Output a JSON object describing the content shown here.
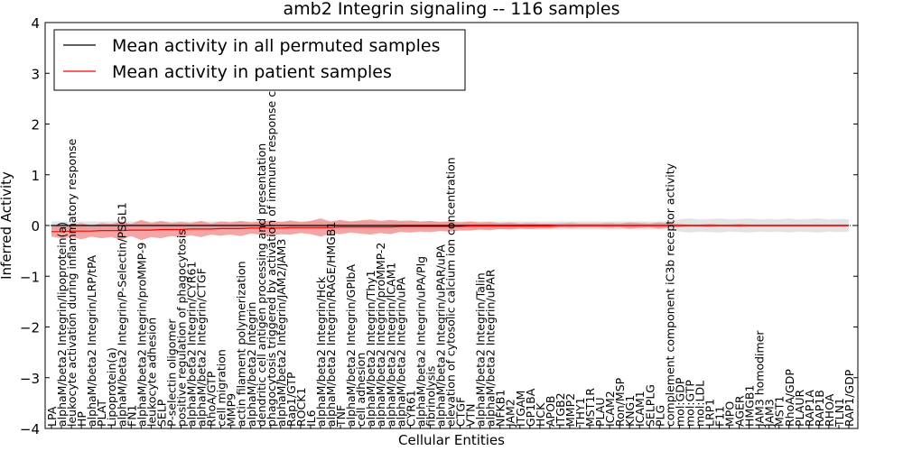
{
  "chart_data": {
    "type": "line",
    "title": "amb2 Integrin signaling -- 116 samples",
    "xlabel": "Cellular Entities",
    "ylabel": "Inferred Activity",
    "ylim": [
      -4,
      4
    ],
    "yticks": [
      -4,
      -3,
      -2,
      -1,
      0,
      1,
      2,
      3,
      4
    ],
    "ytick_labels": [
      "−4",
      "−3",
      "−2",
      "−1",
      "0",
      "1",
      "2",
      "3",
      "4"
    ],
    "grid": false,
    "legend": "top-left",
    "categories": [
      "LPA",
      "alphaM/beta2 Integrin/lipoprotein(a)",
      "leukocyte activation during inflammatory response",
      "HP",
      "alphaM/beta2 Integrin/LRP/tPA",
      "PLAT",
      "Lipoprotein(a)",
      "alphaM/beta2 Integrin/P-Selectin/PSGL1",
      "FN1",
      "alphaM/beta2 Integrin/proMMP-9",
      "leukocyte adhesion",
      "SELP",
      "P-selectin oligomer",
      "positive regulation of phagocytosis",
      "alphaM/beta2 Integrin/CYR61",
      "alphaM/beta2 Integrin/CTGF",
      "RhoA/GTP",
      "cell migration",
      "MMP9",
      "actin filament polymerization",
      "alphaM/beta2 Integrin",
      "dendritic cell antigen processing and presentation",
      "phagocytosis triggered by activation of immune response cell surface",
      "alphaM/beta2 Integrin/JAM2/JAM3",
      "Rap1/GTP",
      "ROCK1",
      "IL6",
      "alphaM/beta2 Integrin/Hck",
      "alphaM/beta2 Integrin/RAGE/HMGB1",
      "TNF",
      "alphaM/beta2 Integrin/GPIbA",
      "cell adhesion",
      "alphaM/beta2 Integrin/Thy1",
      "alphaM/beta2 Integrin/proMMP-2",
      "alphaM/beta2 Integrin/ICAM1",
      "alphaM/beta2 Integrin/uPA",
      "CYR61",
      "alphaM/beta2 Integrin/uPA/Plg",
      "fibrinolysis",
      "alphaM/beta2 Integrin/uPAR/uPA",
      "elevation of cytosolic calcium ion concentration",
      "CTGF",
      "VTN",
      "alphaM/beta2 Integrin/Talin",
      "alphaM/beta2 Integrin/uPAR",
      "NFKB1",
      "JAM2",
      "ITGAM",
      "GP1BA",
      "HCK",
      "APOB",
      "ITGB2",
      "MMP2",
      "THY1",
      "MST1R",
      "PLAU",
      "ICAM2",
      "Ron/MSP",
      "KNG1",
      "ICAM1",
      "SELPLG",
      "PLG",
      "complement component iC3b receptor activity",
      "mol:GDP",
      "mol:GTP",
      "mol:LDL",
      "LRP1",
      "F11",
      "MPO",
      "AGER",
      "HMGB1",
      "JAM3 homodimer",
      "JAM3",
      "MST1",
      "RhoA/GDP",
      "PLAUR",
      "RAP1A",
      "RAP1B",
      "RHOA",
      "TLN1",
      "RAP1/GDP"
    ],
    "series": [
      {
        "name": "Mean activity in all permuted samples",
        "color": "#000000",
        "band_color": "#d9d9d9",
        "values": [
          0.0,
          0.0,
          0.0,
          0.0,
          0.0,
          0.0,
          0.0,
          0.0,
          0.0,
          0.0,
          0.0,
          0.0,
          0.0,
          0.0,
          0.0,
          0.0,
          0.0,
          0.0,
          0.0,
          0.0,
          0.0,
          0.0,
          0.0,
          0.0,
          0.0,
          0.0,
          0.0,
          0.0,
          0.0,
          0.0,
          0.0,
          0.0,
          0.0,
          0.0,
          0.0,
          0.0,
          0.0,
          0.0,
          0.0,
          0.0,
          0.0,
          0.0,
          0.0,
          0.0,
          0.0,
          0.0,
          0.0,
          0.0,
          0.0,
          0.0,
          0.0,
          0.0,
          0.0,
          0.0,
          0.0,
          0.0,
          0.0,
          0.0,
          0.0,
          0.0,
          0.0,
          0.0,
          0.0,
          0.0,
          0.0,
          0.0,
          0.0,
          0.0,
          0.0,
          0.0,
          0.0,
          0.0,
          0.0,
          0.0,
          0.0,
          0.0,
          0.0,
          0.0,
          0.0,
          0.0,
          0.0
        ],
        "band_halfwidth": [
          0.08,
          0.08,
          0.08,
          0.08,
          0.08,
          0.08,
          0.08,
          0.08,
          0.08,
          0.08,
          0.08,
          0.08,
          0.08,
          0.08,
          0.08,
          0.08,
          0.08,
          0.08,
          0.08,
          0.08,
          0.08,
          0.08,
          0.08,
          0.08,
          0.08,
          0.08,
          0.08,
          0.08,
          0.08,
          0.08,
          0.08,
          0.08,
          0.08,
          0.08,
          0.08,
          0.08,
          0.08,
          0.08,
          0.08,
          0.08,
          0.08,
          0.08,
          0.08,
          0.08,
          0.08,
          0.08,
          0.08,
          0.08,
          0.08,
          0.08,
          0.08,
          0.08,
          0.08,
          0.08,
          0.08,
          0.08,
          0.08,
          0.08,
          0.08,
          0.08,
          0.08,
          0.08,
          0.08,
          0.12,
          0.14,
          0.12,
          0.13,
          0.14,
          0.12,
          0.13,
          0.14,
          0.12,
          0.13,
          0.12,
          0.14,
          0.12,
          0.13,
          0.14,
          0.12,
          0.13,
          0.12
        ]
      },
      {
        "name": "Mean activity in patient samples",
        "color": "#ff0000",
        "band_color": "#f08080",
        "values": [
          -0.12,
          -0.12,
          -0.11,
          -0.11,
          -0.11,
          -0.1,
          -0.1,
          -0.1,
          -0.09,
          -0.09,
          -0.09,
          -0.08,
          -0.08,
          -0.08,
          -0.07,
          -0.07,
          -0.07,
          -0.06,
          -0.06,
          -0.06,
          -0.05,
          -0.05,
          -0.05,
          -0.05,
          -0.04,
          -0.04,
          -0.04,
          -0.04,
          -0.04,
          -0.03,
          -0.03,
          -0.03,
          -0.03,
          -0.03,
          -0.03,
          -0.02,
          -0.02,
          -0.02,
          -0.02,
          -0.02,
          -0.02,
          -0.02,
          -0.01,
          -0.01,
          -0.01,
          -0.01,
          -0.01,
          -0.01,
          -0.01,
          -0.01,
          -0.01,
          0.0,
          0.0,
          0.0,
          0.0,
          0.0,
          0.0,
          0.0,
          0.0,
          0.0,
          0.0,
          0.0,
          0.0,
          0.0,
          0.0,
          0.0,
          0.0,
          0.0,
          0.0,
          0.0,
          0.0,
          0.0,
          0.0,
          0.0,
          0.0,
          0.0,
          0.0,
          0.0,
          0.0,
          0.0,
          0.0
        ],
        "band_halfwidth": [
          0.1,
          0.13,
          0.12,
          0.16,
          0.11,
          0.15,
          0.13,
          0.18,
          0.12,
          0.2,
          0.14,
          0.17,
          0.13,
          0.15,
          0.12,
          0.16,
          0.11,
          0.14,
          0.12,
          0.15,
          0.11,
          0.13,
          0.15,
          0.12,
          0.14,
          0.11,
          0.13,
          0.18,
          0.12,
          0.14,
          0.11,
          0.13,
          0.15,
          0.12,
          0.14,
          0.11,
          0.12,
          0.1,
          0.11,
          0.09,
          0.1,
          0.08,
          0.09,
          0.07,
          0.08,
          0.06,
          0.07,
          0.05,
          0.06,
          0.05,
          0.05,
          0.04,
          0.05,
          0.04,
          0.04,
          0.04,
          0.05,
          0.04,
          0.06,
          0.05,
          0.04,
          0.06,
          0.04,
          0.03,
          0.02,
          0.02,
          0.03,
          0.02,
          0.02,
          0.03,
          0.02,
          0.02,
          0.02,
          0.02,
          0.02,
          0.02,
          0.02,
          0.02,
          0.02,
          0.02,
          0.02
        ]
      }
    ]
  }
}
